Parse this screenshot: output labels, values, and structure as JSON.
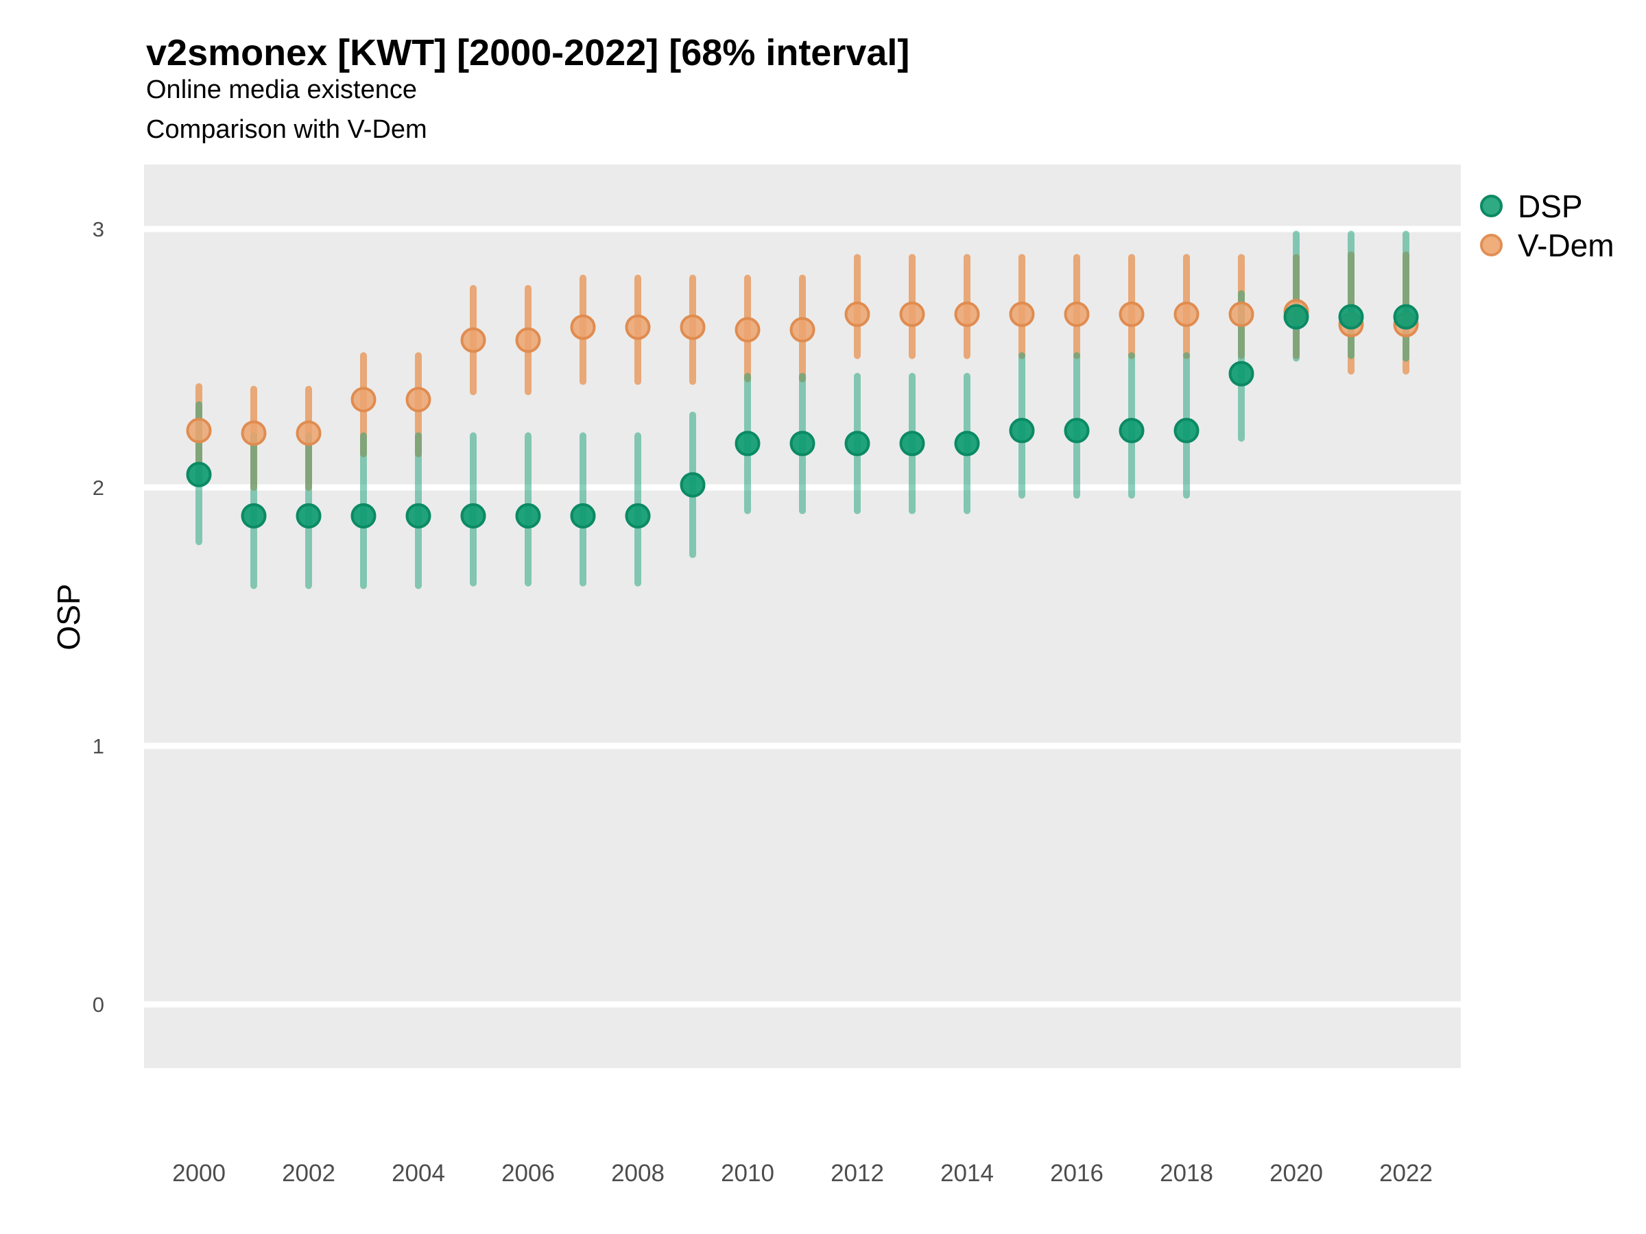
{
  "header": {
    "title": "v2smonex [KWT] [2000-2022] [68% interval]",
    "subtitle1": "Online media existence",
    "subtitle2": "Comparison with V-Dem"
  },
  "axes": {
    "ylabel": "OSP"
  },
  "colors": {
    "panel_bg": "#EBEBEB",
    "gridline": "#FFFFFF",
    "tick_text": "#4D4D4D",
    "dsp_bar": "rgba(26,161,121,0.50)",
    "dsp_point_fill": "rgba(16,156,114,0.93)",
    "dsp_point_stroke": "#0B8A64",
    "vdem_bar": "rgba(230,123,43,0.60)",
    "vdem_point_fill": "rgba(236,164,112,0.85)",
    "vdem_point_stroke": "#E08C50"
  },
  "chart_data": {
    "type": "scatter",
    "subtype": "pointrange",
    "title": "v2smonex [KWT] [2000-2022] [68% interval]",
    "subtitle": [
      "Online media existence",
      "Comparison with V-Dem"
    ],
    "xlabel": "",
    "ylabel": "OSP",
    "interval": "68%",
    "legend_position": "right",
    "grid": "major-horizontal-only",
    "x": [
      2000,
      2001,
      2002,
      2003,
      2004,
      2005,
      2006,
      2007,
      2008,
      2009,
      2010,
      2011,
      2012,
      2013,
      2014,
      2015,
      2016,
      2017,
      2018,
      2019,
      2020,
      2021,
      2022
    ],
    "x_tick_labels": [
      "2000",
      "2002",
      "2004",
      "2006",
      "2008",
      "2010",
      "2012",
      "2014",
      "2016",
      "2018",
      "2020",
      "2022"
    ],
    "y_ticks": [
      0,
      1,
      2,
      3
    ],
    "ylim": [
      -0.26,
      3.25
    ],
    "series": [
      {
        "name": "DSP",
        "color": "#129E71",
        "mid": [
          2.05,
          1.89,
          1.89,
          1.89,
          1.89,
          1.89,
          1.89,
          1.89,
          1.89,
          2.01,
          2.17,
          2.17,
          2.17,
          2.17,
          2.17,
          2.22,
          2.22,
          2.22,
          2.22,
          2.44,
          2.66,
          2.66,
          2.66
        ],
        "lo": [
          1.79,
          1.62,
          1.62,
          1.62,
          1.62,
          1.63,
          1.63,
          1.63,
          1.63,
          1.74,
          1.91,
          1.91,
          1.91,
          1.91,
          1.91,
          1.97,
          1.97,
          1.97,
          1.97,
          2.19,
          2.5,
          2.51,
          2.5
        ],
        "hi": [
          2.32,
          2.2,
          2.2,
          2.2,
          2.2,
          2.2,
          2.2,
          2.2,
          2.2,
          2.28,
          2.43,
          2.43,
          2.43,
          2.43,
          2.43,
          2.51,
          2.51,
          2.51,
          2.51,
          2.75,
          2.98,
          2.98,
          2.98
        ]
      },
      {
        "name": "V-Dem",
        "color": "#E67B2B",
        "mid": [
          2.22,
          2.21,
          2.21,
          2.34,
          2.34,
          2.57,
          2.57,
          2.62,
          2.62,
          2.62,
          2.61,
          2.61,
          2.67,
          2.67,
          2.67,
          2.67,
          2.67,
          2.67,
          2.67,
          2.67,
          2.68,
          2.63,
          2.63
        ],
        "lo": [
          2.03,
          2.0,
          2.0,
          2.13,
          2.13,
          2.37,
          2.37,
          2.41,
          2.41,
          2.41,
          2.42,
          2.42,
          2.51,
          2.51,
          2.51,
          2.51,
          2.51,
          2.51,
          2.51,
          2.51,
          2.51,
          2.45,
          2.45
        ],
        "hi": [
          2.39,
          2.38,
          2.38,
          2.51,
          2.51,
          2.77,
          2.77,
          2.81,
          2.81,
          2.81,
          2.81,
          2.81,
          2.89,
          2.89,
          2.89,
          2.89,
          2.89,
          2.89,
          2.89,
          2.89,
          2.89,
          2.9,
          2.9
        ]
      }
    ]
  }
}
